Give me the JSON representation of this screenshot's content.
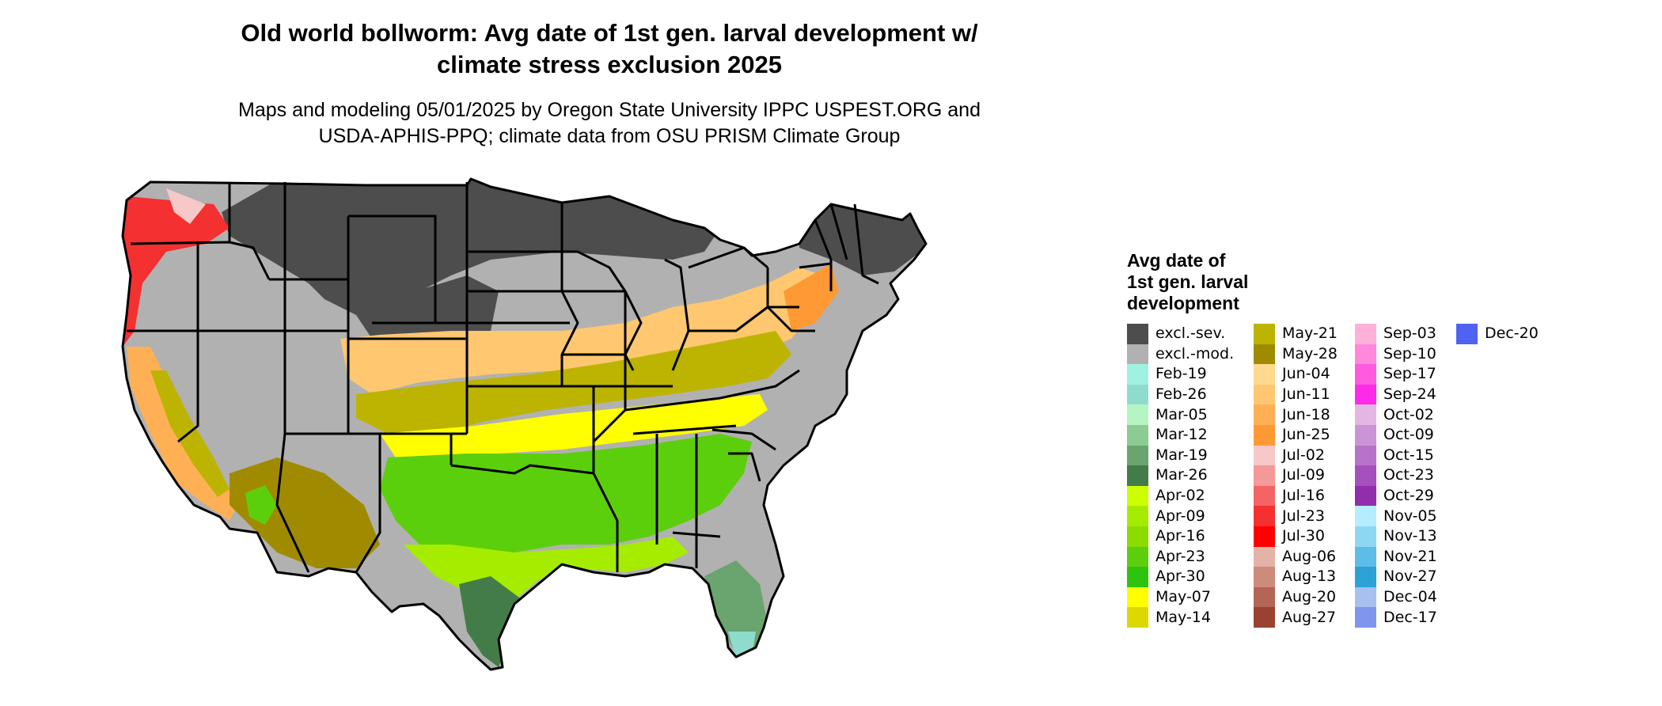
{
  "title_lines": [
    "Old world bollworm: Avg date of 1st gen. larval development w/",
    "climate stress exclusion 2025"
  ],
  "subtitle_lines": [
    "Maps and modeling 05/01/2025 by Oregon State University IPPC USPEST.ORG and",
    "USDA-APHIS-PPQ; climate data from OSU PRISM Climate Group"
  ],
  "legend": {
    "title_lines": [
      "Avg date of",
      "1st gen. larval",
      "development"
    ],
    "columns": [
      [
        {
          "label": "excl.-sev.",
          "color": "#4d4d4d"
        },
        {
          "label": "excl.-mod.",
          "color": "#b1b1b1"
        },
        {
          "label": "Feb-19",
          "color": "#9ff2e0"
        },
        {
          "label": "Feb-26",
          "color": "#8fdcce"
        },
        {
          "label": "Mar-05",
          "color": "#b5f5c1"
        },
        {
          "label": "Mar-12",
          "color": "#8ccc92"
        },
        {
          "label": "Mar-19",
          "color": "#6aa46e"
        },
        {
          "label": "Mar-26",
          "color": "#437c48"
        },
        {
          "label": "Apr-02",
          "color": "#ccff00"
        },
        {
          "label": "Apr-09",
          "color": "#a5ec00"
        },
        {
          "label": "Apr-16",
          "color": "#8bdc00"
        },
        {
          "label": "Apr-23",
          "color": "#5ccf0c"
        },
        {
          "label": "Apr-30",
          "color": "#2ec40e"
        },
        {
          "label": "May-07",
          "color": "#ffff00"
        },
        {
          "label": "May-14",
          "color": "#dcd800"
        }
      ],
      [
        {
          "label": "May-21",
          "color": "#bcb400"
        },
        {
          "label": "May-28",
          "color": "#a08b00"
        },
        {
          "label": "Jun-04",
          "color": "#ffd98f"
        },
        {
          "label": "Jun-11",
          "color": "#ffc770"
        },
        {
          "label": "Jun-18",
          "color": "#ffb055"
        },
        {
          "label": "Jun-25",
          "color": "#ff9933"
        },
        {
          "label": "Jul-02",
          "color": "#f6c8c8"
        },
        {
          "label": "Jul-09",
          "color": "#f59898"
        },
        {
          "label": "Jul-16",
          "color": "#f46464"
        },
        {
          "label": "Jul-23",
          "color": "#f43030"
        },
        {
          "label": "Jul-30",
          "color": "#ff0000"
        },
        {
          "label": "Aug-06",
          "color": "#e3b3a8"
        },
        {
          "label": "Aug-13",
          "color": "#cd8b7c"
        },
        {
          "label": "Aug-20",
          "color": "#b56555"
        },
        {
          "label": "Aug-27",
          "color": "#9a4232"
        }
      ],
      [
        {
          "label": "Sep-03",
          "color": "#ffb0da"
        },
        {
          "label": "Sep-10",
          "color": "#ff88dc"
        },
        {
          "label": "Sep-17",
          "color": "#ff5ae0"
        },
        {
          "label": "Sep-24",
          "color": "#ff2ae8"
        },
        {
          "label": "Oct-02",
          "color": "#e3b6e3"
        },
        {
          "label": "Oct-09",
          "color": "#cb94d6"
        },
        {
          "label": "Oct-15",
          "color": "#b872ca"
        },
        {
          "label": "Oct-23",
          "color": "#a650bd"
        },
        {
          "label": "Oct-29",
          "color": "#922eab"
        },
        {
          "label": "Nov-05",
          "color": "#b5ecff"
        },
        {
          "label": "Nov-13",
          "color": "#8dd7f3"
        },
        {
          "label": "Nov-21",
          "color": "#5cbde8"
        },
        {
          "label": "Nov-27",
          "color": "#2ca2d7"
        },
        {
          "label": "Dec-04",
          "color": "#a8c0ef"
        },
        {
          "label": "Dec-17",
          "color": "#7f95ee"
        }
      ],
      [
        {
          "label": "Dec-20",
          "color": "#4f62f2"
        }
      ]
    ]
  }
}
